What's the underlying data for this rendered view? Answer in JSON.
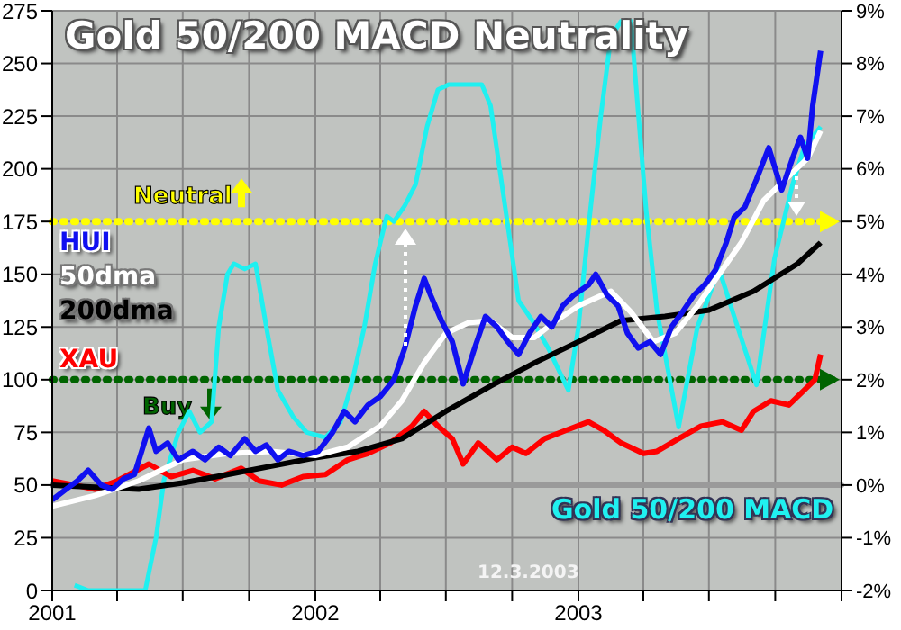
{
  "chart_data": {
    "type": "line",
    "title": "Gold 50/200 MACD Neutrality",
    "legend": "left",
    "grid": true,
    "line_style": "solid",
    "xlim": [
      "2001-01-01",
      "2004-01-01"
    ],
    "xticks": [
      {
        "value": "2001-01-01",
        "label": "2001"
      },
      {
        "value": "2001-04-01",
        "label": null
      },
      {
        "value": "2001-07-01",
        "label": null
      },
      {
        "value": "2001-10-01",
        "label": null
      },
      {
        "value": "2002-01-01",
        "label": "2002"
      },
      {
        "value": "2002-04-01",
        "label": null
      },
      {
        "value": "2002-07-01",
        "label": null
      },
      {
        "value": "2002-10-01",
        "label": null
      },
      {
        "value": "2003-01-01",
        "label": "2003"
      },
      {
        "value": "2003-04-01",
        "label": null
      },
      {
        "value": "2003-07-01",
        "label": null
      },
      {
        "value": "2003-10-01",
        "label": null
      },
      {
        "value": "2004-01-01",
        "label": null
      }
    ],
    "ylim": [
      0,
      275
    ],
    "yticks": [
      0,
      25,
      50,
      75,
      100,
      125,
      150,
      175,
      200,
      225,
      250,
      275
    ],
    "y2lim": [
      -2,
      9
    ],
    "y2ticks": [
      {
        "value": -2,
        "label": "-2%"
      },
      {
        "value": -1,
        "label": "-1%"
      },
      {
        "value": 0,
        "label": "0%"
      },
      {
        "value": 1,
        "label": "1%"
      },
      {
        "value": 2,
        "label": "2%"
      },
      {
        "value": 3,
        "label": "3%"
      },
      {
        "value": 4,
        "label": "4%"
      },
      {
        "value": 5,
        "label": "5%"
      },
      {
        "value": 6,
        "label": "6%"
      },
      {
        "value": 7,
        "label": "7%"
      },
      {
        "value": 8,
        "label": "8%"
      },
      {
        "value": 9,
        "label": "9%"
      }
    ],
    "ref_lines": [
      {
        "axis": "y",
        "value": 175,
        "label": "Neutral",
        "color": "#ffff00",
        "line_style": "dotted"
      },
      {
        "axis": "y",
        "value": 100,
        "label": "Buy",
        "color": "#006400",
        "line_style": "dotted"
      },
      {
        "axis": "y2",
        "value": 0,
        "color": "#9a9a9a",
        "line_style": "solid"
      }
    ],
    "annotations": [
      "12.3.2003"
    ],
    "series": [
      {
        "name": "Gold 50/200 MACD",
        "color": "#20f0f0",
        "axis": "y2",
        "x": [
          "2001-02-01",
          "2001-02-20",
          "2001-05-10",
          "2001-05-25",
          "2001-06-05",
          "2001-06-25",
          "2001-07-10",
          "2001-07-25",
          "2001-08-10",
          "2001-08-20",
          "2001-09-01",
          "2001-09-10",
          "2001-09-25",
          "2001-10-10",
          "2001-10-25",
          "2001-11-10",
          "2001-12-01",
          "2001-12-20",
          "2002-01-15",
          "2002-02-05",
          "2002-02-20",
          "2002-03-10",
          "2002-03-25",
          "2002-04-10",
          "2002-04-20",
          "2002-05-05",
          "2002-05-20",
          "2002-06-05",
          "2002-06-20",
          "2002-07-05",
          "2002-08-05",
          "2002-08-20",
          "2002-09-01",
          "2002-09-20",
          "2002-10-10",
          "2002-10-30",
          "2002-11-20",
          "2002-12-18",
          "2003-01-01",
          "2003-01-15",
          "2003-02-01",
          "2003-02-15",
          "2003-03-01",
          "2003-03-15",
          "2003-03-20",
          "2003-04-05",
          "2003-04-20",
          "2003-05-20",
          "2003-06-15",
          "2003-07-15",
          "2003-08-05",
          "2003-09-05",
          "2003-09-30",
          "2003-10-25",
          "2003-11-10",
          "2003-12-03"
        ],
        "values": [
          -1.9,
          -2,
          -2,
          -1,
          0.1,
          1.0,
          1.4,
          1.0,
          1.2,
          3.0,
          4.0,
          4.2,
          4.1,
          4.2,
          3.0,
          1.8,
          1.3,
          1.0,
          0.9,
          1.2,
          1.9,
          3.0,
          4.2,
          5.1,
          5.0,
          5.3,
          5.7,
          6.8,
          7.5,
          7.6,
          7.6,
          7.6,
          7.2,
          5.4,
          3.5,
          3.1,
          2.6,
          1.8,
          3.0,
          4.9,
          7.0,
          8.5,
          8.8,
          8.8,
          7.9,
          5.2,
          3.3,
          1.1,
          3.0,
          4.1,
          3.2,
          1.9,
          4.3,
          5.7,
          6.4,
          6.8
        ]
      },
      {
        "name": "XAU",
        "color": "#ff0000",
        "x": [
          "2001-01-01",
          "2001-02-01",
          "2001-03-01",
          "2001-04-01",
          "2001-05-15",
          "2001-06-15",
          "2001-07-15",
          "2001-08-15",
          "2001-09-20",
          "2001-10-15",
          "2001-11-15",
          "2001-12-15",
          "2002-01-15",
          "2002-02-15",
          "2002-03-15",
          "2002-04-15",
          "2002-05-15",
          "2002-06-01",
          "2002-06-20",
          "2002-07-10",
          "2002-07-25",
          "2002-08-15",
          "2002-09-10",
          "2002-10-01",
          "2002-10-20",
          "2002-11-15",
          "2002-12-15",
          "2003-01-15",
          "2003-02-05",
          "2003-03-01",
          "2003-04-01",
          "2003-04-20",
          "2003-05-20",
          "2003-06-20",
          "2003-07-20",
          "2003-08-15",
          "2003-09-01",
          "2003-09-25",
          "2003-10-20",
          "2003-11-10",
          "2003-11-25",
          "2003-12-03"
        ],
        "values": [
          52,
          50,
          48,
          52,
          60,
          54,
          57,
          53,
          58,
          52,
          50,
          54,
          55,
          62,
          65,
          70,
          78,
          85,
          78,
          72,
          60,
          70,
          62,
          68,
          65,
          72,
          76,
          80,
          76,
          70,
          65,
          66,
          72,
          78,
          80,
          76,
          85,
          90,
          88,
          95,
          100,
          112
        ]
      },
      {
        "name": "200dma",
        "color": "#000000",
        "x": [
          "2001-01-01",
          "2001-03-01",
          "2001-05-01",
          "2001-07-01",
          "2001-09-01",
          "2001-11-01",
          "2002-01-01",
          "2002-03-01",
          "2002-05-01",
          "2002-07-01",
          "2002-09-01",
          "2002-11-01",
          "2003-01-01",
          "2003-03-01",
          "2003-05-01",
          "2003-07-01",
          "2003-09-01",
          "2003-11-01",
          "2003-12-03"
        ],
        "values": [
          50,
          49,
          48,
          51,
          55,
          59,
          63,
          66,
          72,
          85,
          97,
          108,
          118,
          128,
          130,
          133,
          142,
          155,
          165
        ]
      },
      {
        "name": "50dma",
        "color": "#ffffff",
        "x": [
          "2001-01-01",
          "2001-03-01",
          "2001-05-01",
          "2001-07-01",
          "2001-09-01",
          "2001-11-01",
          "2002-01-01",
          "2002-02-15",
          "2002-04-01",
          "2002-05-01",
          "2002-06-01",
          "2002-07-01",
          "2002-08-01",
          "2002-09-01",
          "2002-10-01",
          "2002-11-01",
          "2002-12-01",
          "2003-01-01",
          "2003-02-15",
          "2003-03-15",
          "2003-04-15",
          "2003-05-15",
          "2003-06-15",
          "2003-07-15",
          "2003-08-15",
          "2003-09-15",
          "2003-10-15",
          "2003-11-15",
          "2003-12-03"
        ],
        "values": [
          40,
          45,
          52,
          62,
          65,
          66,
          64,
          68,
          78,
          90,
          108,
          122,
          127,
          128,
          120,
          120,
          128,
          135,
          142,
          132,
          118,
          122,
          135,
          150,
          165,
          185,
          195,
          205,
          218
        ]
      },
      {
        "name": "HUI",
        "color": "#1010f0",
        "x": [
          "2001-01-01",
          "2001-01-20",
          "2001-02-05",
          "2001-02-20",
          "2001-03-10",
          "2001-03-25",
          "2001-04-10",
          "2001-04-25",
          "2001-05-15",
          "2001-05-25",
          "2001-06-10",
          "2001-06-25",
          "2001-07-15",
          "2001-08-01",
          "2001-08-20",
          "2001-09-05",
          "2001-09-25",
          "2001-10-10",
          "2001-10-25",
          "2001-11-10",
          "2001-11-25",
          "2001-12-15",
          "2002-01-05",
          "2002-01-25",
          "2002-02-10",
          "2002-02-25",
          "2002-03-15",
          "2002-04-01",
          "2002-04-20",
          "2002-05-05",
          "2002-05-20",
          "2002-06-01",
          "2002-06-10",
          "2002-06-25",
          "2002-07-10",
          "2002-07-25",
          "2002-08-10",
          "2002-08-25",
          "2002-09-10",
          "2002-09-25",
          "2002-10-10",
          "2002-10-25",
          "2002-11-10",
          "2002-11-25",
          "2002-12-10",
          "2002-12-25",
          "2003-01-15",
          "2003-01-25",
          "2003-02-10",
          "2003-02-25",
          "2003-03-10",
          "2003-03-25",
          "2003-04-10",
          "2003-04-25",
          "2003-05-10",
          "2003-05-25",
          "2003-06-10",
          "2003-06-25",
          "2003-07-10",
          "2003-07-25",
          "2003-08-05",
          "2003-08-20",
          "2003-09-05",
          "2003-09-22",
          "2003-10-10",
          "2003-10-25",
          "2003-11-05",
          "2003-11-15",
          "2003-11-22",
          "2003-12-03"
        ],
        "values": [
          43,
          48,
          52,
          57,
          50,
          48,
          53,
          55,
          77,
          66,
          70,
          62,
          66,
          62,
          68,
          64,
          72,
          66,
          69,
          62,
          66,
          64,
          66,
          75,
          85,
          80,
          88,
          92,
          100,
          115,
          135,
          148,
          140,
          128,
          118,
          98,
          115,
          130,
          125,
          118,
          112,
          122,
          130,
          125,
          135,
          140,
          145,
          150,
          140,
          135,
          122,
          115,
          118,
          112,
          125,
          132,
          140,
          145,
          152,
          165,
          177,
          182,
          195,
          210,
          190,
          205,
          215,
          205,
          230,
          256
        ]
      }
    ]
  }
}
